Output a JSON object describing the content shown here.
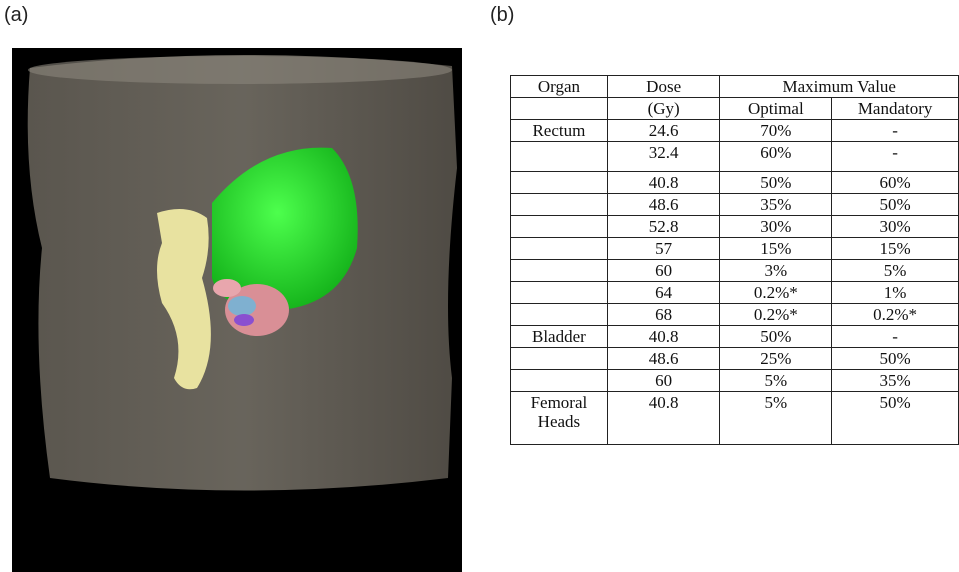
{
  "figure": {
    "panel_a": {
      "label": "(a)"
    },
    "panel_b": {
      "label": "(b)"
    },
    "table": {
      "header": {
        "organ": "Organ",
        "dose": "Dose",
        "dose_unit": "(Gy)",
        "max_value": "Maximum Value",
        "optimal": "Optimal",
        "mandatory": "Mandatory"
      },
      "groups": [
        {
          "organ": "Rectum",
          "rows": [
            [
              "24.6",
              "70%",
              "-"
            ],
            [
              "32.4",
              "60%",
              "-"
            ],
            [
              "40.8",
              "50%",
              "60%"
            ],
            [
              "48.6",
              "35%",
              "50%"
            ],
            [
              "52.8",
              "30%",
              "30%"
            ],
            [
              "57",
              "15%",
              "15%"
            ],
            [
              "60",
              "3%",
              "5%"
            ],
            [
              "64",
              "0.2%*",
              "1%"
            ],
            [
              "68",
              "0.2%*",
              "0.2%*"
            ]
          ]
        },
        {
          "organ": "Bladder",
          "rows": [
            [
              "40.8",
              "50%",
              "-"
            ],
            [
              "48.6",
              "25%",
              "50%"
            ],
            [
              "60",
              "5%",
              "35%"
            ]
          ]
        },
        {
          "organ": "Femoral Heads",
          "rows": [
            [
              "40.8",
              "5%",
              "50%"
            ]
          ]
        }
      ]
    }
  }
}
